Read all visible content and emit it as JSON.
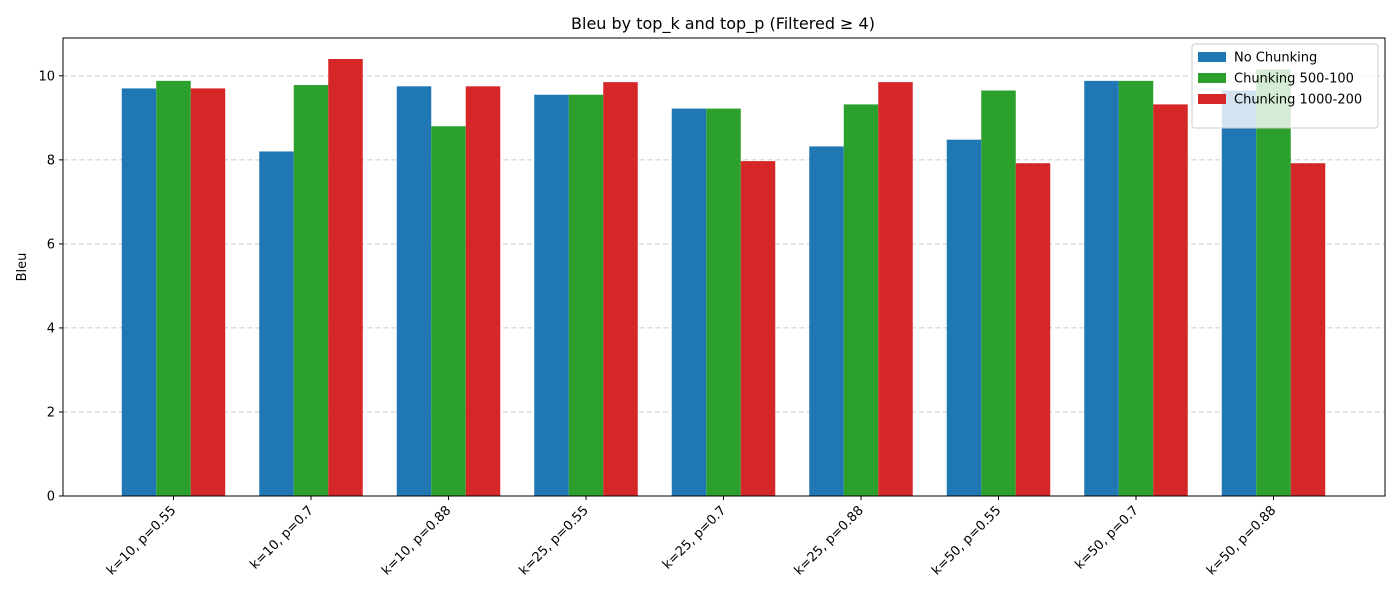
{
  "chart_data": {
    "type": "bar",
    "title": "Bleu by top_k and top_p (Filtered ≥ 4)",
    "xlabel": "",
    "ylabel": "Bleu",
    "ylim": [
      0,
      10.9
    ],
    "yticks": [
      0,
      2,
      4,
      6,
      8,
      10
    ],
    "grid": "y-dashed",
    "legend_position": "top-right",
    "categories": [
      "k=10, p=0.55",
      "k=10, p=0.7",
      "k=10, p=0.88",
      "k=25, p=0.55",
      "k=25, p=0.7",
      "k=25, p=0.88",
      "k=50, p=0.55",
      "k=50, p=0.7",
      "k=50, p=0.88"
    ],
    "series": [
      {
        "name": "No Chunking",
        "color": "#1f77b4",
        "values": [
          9.7,
          8.2,
          9.75,
          9.55,
          9.22,
          8.32,
          8.48,
          9.88,
          9.65
        ]
      },
      {
        "name": "Chunking 500-100",
        "color": "#2ca02c",
        "values": [
          9.88,
          9.78,
          8.8,
          9.55,
          9.22,
          9.32,
          9.65,
          9.88,
          10.15
        ]
      },
      {
        "name": "Chunking 1000-200",
        "color": "#d62728",
        "values": [
          9.7,
          10.4,
          9.75,
          9.85,
          7.97,
          9.85,
          7.92,
          9.32,
          7.92
        ]
      }
    ]
  }
}
